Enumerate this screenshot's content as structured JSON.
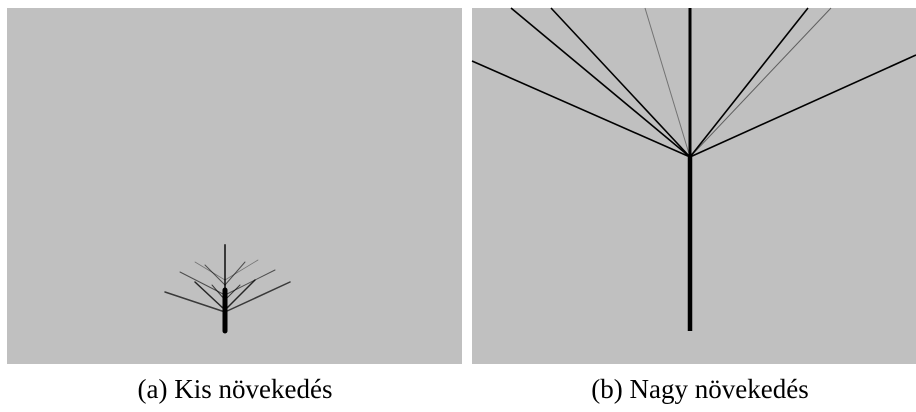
{
  "figure": {
    "subfigures": [
      {
        "caption": "(a) Kis növekedés"
      },
      {
        "caption": "(b) Nagy növekedés"
      }
    ]
  }
}
